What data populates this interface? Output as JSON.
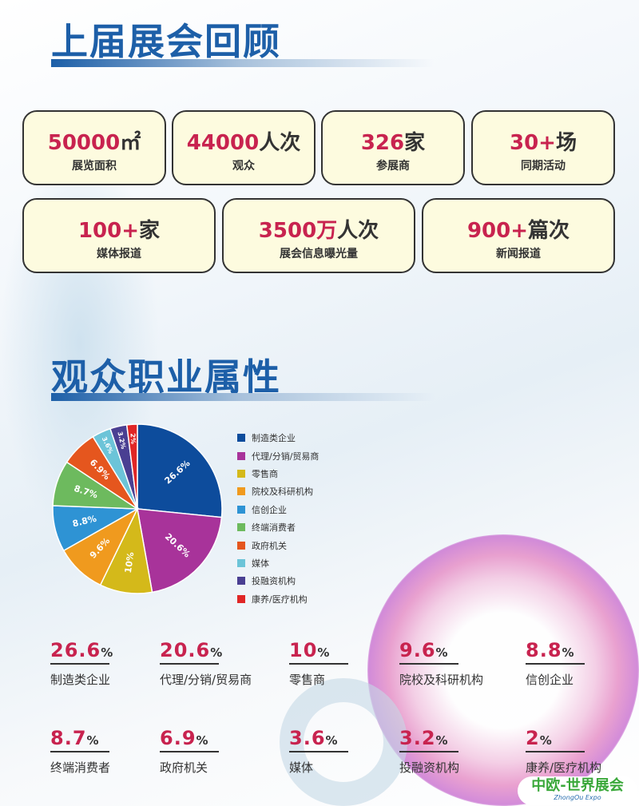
{
  "section1": {
    "title": "上届展会回顾",
    "cards": [
      {
        "value": "50000",
        "unit": "㎡",
        "label": "展览面积"
      },
      {
        "value": "44000",
        "unit": "人次",
        "label": "观众"
      },
      {
        "value": "326",
        "unit": "家",
        "label": "参展商"
      },
      {
        "value": "30+",
        "unit": "场",
        "label": "同期活动"
      },
      {
        "value": "100+",
        "unit": "家",
        "label": "媒体报道"
      },
      {
        "value": "3500万",
        "unit": "人次",
        "label": "展会信息曝光量"
      },
      {
        "value": "900+",
        "unit": "篇次",
        "label": "新闻报道"
      }
    ]
  },
  "section2": {
    "title": "观众职业属性"
  },
  "chart_data": {
    "type": "pie",
    "start": "12 o'clock",
    "direction": "clockwise",
    "legend": "right",
    "categories": [
      "制造类企业",
      "代理/分销/贸易商",
      "零售商",
      "院校及科研机构",
      "信创企业",
      "终端消费者",
      "政府机关",
      "媒体",
      "投融资机构",
      "康养/医疗机构"
    ],
    "values": [
      26.6,
      20.6,
      10,
      9.6,
      8.8,
      8.7,
      6.9,
      3.6,
      3.2,
      2
    ],
    "labels": [
      "26.6%",
      "20.6%",
      "10%",
      "9.6%",
      "8.8%",
      "8.7%",
      "6.9%",
      "3.6%",
      "3.2%",
      "2%"
    ],
    "colors": [
      "#0d4c9c",
      "#a8339a",
      "#d4b91a",
      "#f09a1e",
      "#2e93d4",
      "#6dba5e",
      "#e5561e",
      "#6cc4d8",
      "#4a3f92",
      "#e02626"
    ]
  },
  "stats": [
    {
      "value": "26.6",
      "unit": "%",
      "label": "制造类企业"
    },
    {
      "value": "20.6",
      "unit": "%",
      "label": "代理/分销/贸易商"
    },
    {
      "value": "10",
      "unit": "%",
      "label": "零售商"
    },
    {
      "value": "9.6",
      "unit": "%",
      "label": "院校及科研机构"
    },
    {
      "value": "8.8",
      "unit": "%",
      "label": "信创企业"
    },
    {
      "value": "8.7",
      "unit": "%",
      "label": "终端消费者"
    },
    {
      "value": "6.9",
      "unit": "%",
      "label": "政府机关"
    },
    {
      "value": "3.6",
      "unit": "%",
      "label": "媒体"
    },
    {
      "value": "3.2",
      "unit": "%",
      "label": "投融资机构"
    },
    {
      "value": "2",
      "unit": "%",
      "label": "康养/医疗机构"
    }
  ],
  "logo": {
    "name": "中欧-世界展会",
    "sub": "ZhongOu Expo"
  }
}
